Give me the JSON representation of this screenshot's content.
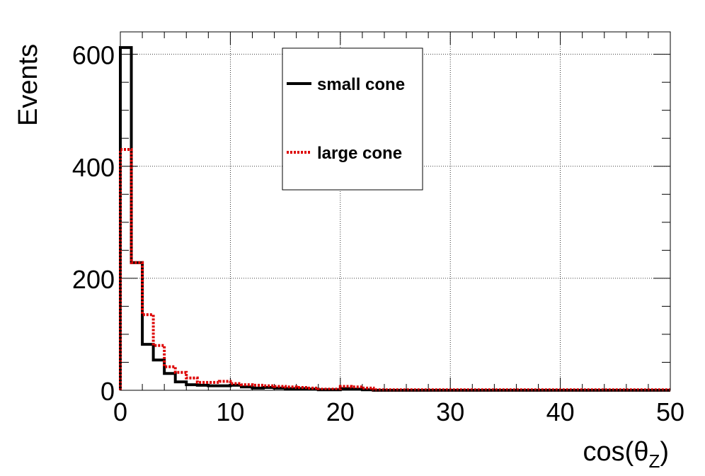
{
  "chart_data": {
    "type": "histogram",
    "xlabel_base": "cos(θ",
    "xlabel_sub": "Z",
    "xlabel_close": ")",
    "ylabel": "Events",
    "xlim": [
      0,
      50
    ],
    "ylim": [
      0,
      640
    ],
    "x_ticks": [
      0,
      10,
      20,
      30,
      40,
      50
    ],
    "y_ticks": [
      0,
      200,
      400,
      600
    ],
    "grid": true,
    "legend_position": "top-center",
    "bin_edges": [
      0,
      1,
      2,
      3,
      4,
      5,
      6,
      7,
      8,
      9,
      10,
      11,
      12,
      13,
      14,
      15,
      16,
      17,
      18,
      19,
      20,
      21,
      22,
      23,
      24,
      25,
      26,
      27,
      28,
      29,
      30,
      31,
      32,
      33,
      34,
      35,
      36,
      37,
      38,
      39,
      40,
      41,
      42,
      43,
      44,
      45,
      46,
      47,
      48,
      49,
      50
    ],
    "series": [
      {
        "name": "small cone",
        "color": "#000000",
        "style": "solid",
        "values": [
          612,
          228,
          82,
          54,
          30,
          15,
          10,
          9,
          8,
          8,
          9,
          6,
          4,
          5,
          4,
          3,
          3,
          2,
          1,
          1,
          3,
          2,
          1,
          0,
          0,
          0,
          0,
          0,
          0,
          0,
          0,
          0,
          0,
          0,
          0,
          0,
          0,
          0,
          0,
          0,
          0,
          0,
          0,
          0,
          0,
          0,
          0,
          0,
          0,
          0
        ]
      },
      {
        "name": "large cone",
        "color": "#dd0000",
        "style": "dotted",
        "values": [
          430,
          228,
          135,
          80,
          42,
          32,
          22,
          14,
          14,
          16,
          12,
          10,
          9,
          8,
          7,
          6,
          5,
          4,
          2,
          2,
          7,
          6,
          4,
          1,
          1,
          1,
          1,
          1,
          1,
          1,
          1,
          1,
          1,
          1,
          1,
          1,
          1,
          1,
          1,
          1,
          1,
          1,
          1,
          1,
          1,
          1,
          1,
          1,
          1,
          1
        ]
      }
    ]
  }
}
